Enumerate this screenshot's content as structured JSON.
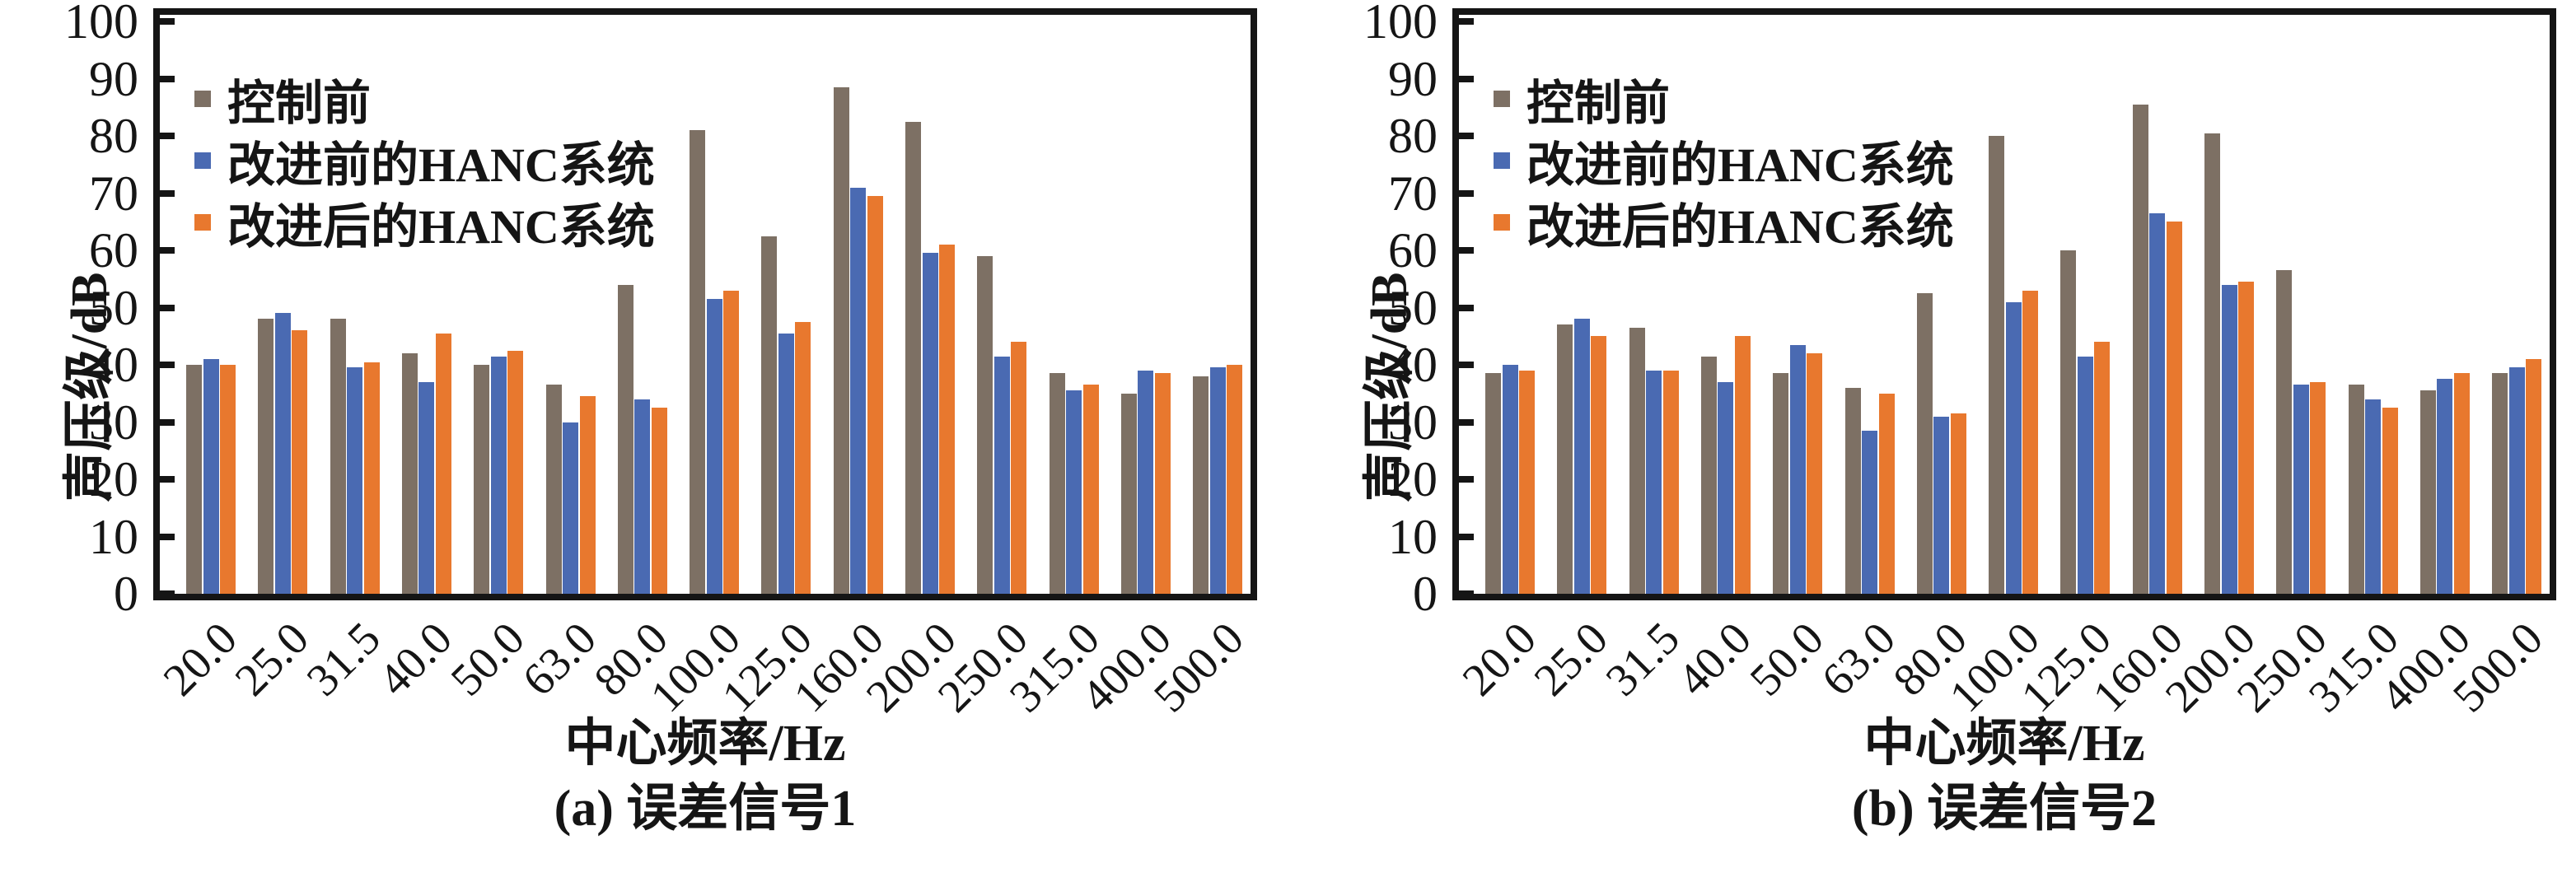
{
  "figure": {
    "background": "#ffffff",
    "text_color": "#151515",
    "panel_count": 2
  },
  "chart_data": [
    {
      "type": "bar",
      "title": "(a) 误差信号1",
      "xlabel": "中心频率/Hz",
      "ylabel": "声压级/dB",
      "ylim": [
        0,
        100
      ],
      "yticks": [
        0,
        10,
        20,
        30,
        40,
        50,
        60,
        70,
        80,
        90,
        100
      ],
      "grid": false,
      "legend_position": "top-left-inside",
      "categories": [
        "20.0",
        "25.0",
        "31.5",
        "40.0",
        "50.0",
        "63.0",
        "80.0",
        "100.0",
        "125.0",
        "160.0",
        "200.0",
        "250.0",
        "315.0",
        "400.0",
        "500.0"
      ],
      "series": [
        {
          "name": "控制前",
          "color": "#7d7064",
          "values": [
            40,
            48,
            48,
            42,
            40,
            36.5,
            54,
            81,
            62.5,
            88.5,
            82.5,
            59,
            38.5,
            35,
            38
          ]
        },
        {
          "name": "改进前的HANC系统",
          "color": "#4a6ab2",
          "values": [
            41,
            49,
            39.5,
            37,
            41.5,
            30,
            34,
            51.5,
            45.5,
            71,
            59.5,
            41.5,
            35.5,
            39,
            39.5
          ]
        },
        {
          "name": "改进后的HANC系统",
          "color": "#e8782e",
          "values": [
            40,
            46,
            40.5,
            45.5,
            42.5,
            34.5,
            32.5,
            53,
            47.5,
            69.5,
            61,
            44,
            36.5,
            38.5,
            40
          ]
        }
      ]
    },
    {
      "type": "bar",
      "title": "(b) 误差信号2",
      "xlabel": "中心频率/Hz",
      "ylabel": "声压级/dB",
      "ylim": [
        0,
        100
      ],
      "yticks": [
        0,
        10,
        20,
        30,
        40,
        50,
        60,
        70,
        80,
        90,
        100
      ],
      "grid": false,
      "legend_position": "top-left-inside",
      "categories": [
        "20.0",
        "25.0",
        "31.5",
        "40.0",
        "50.0",
        "63.0",
        "80.0",
        "100.0",
        "125.0",
        "160.0",
        "200.0",
        "250.0",
        "315.0",
        "400.0",
        "500.0"
      ],
      "series": [
        {
          "name": "控制前",
          "color": "#7d7064",
          "values": [
            38.5,
            47,
            46.5,
            41.5,
            38.5,
            36,
            52.5,
            80,
            60,
            85.5,
            80.5,
            56.5,
            36.5,
            35.5,
            38.5
          ]
        },
        {
          "name": "改进前的HANC系统",
          "color": "#4a6ab2",
          "values": [
            40,
            48,
            39,
            37,
            43.5,
            28.5,
            31,
            51,
            41.5,
            66.5,
            54,
            36.5,
            34,
            37.5,
            39.5
          ]
        },
        {
          "name": "改进后的HANC系统",
          "color": "#e8782e",
          "values": [
            39,
            45,
            39,
            45,
            42,
            35,
            31.5,
            53,
            44,
            65,
            54.5,
            37,
            32.5,
            38.5,
            41
          ]
        }
      ]
    }
  ]
}
